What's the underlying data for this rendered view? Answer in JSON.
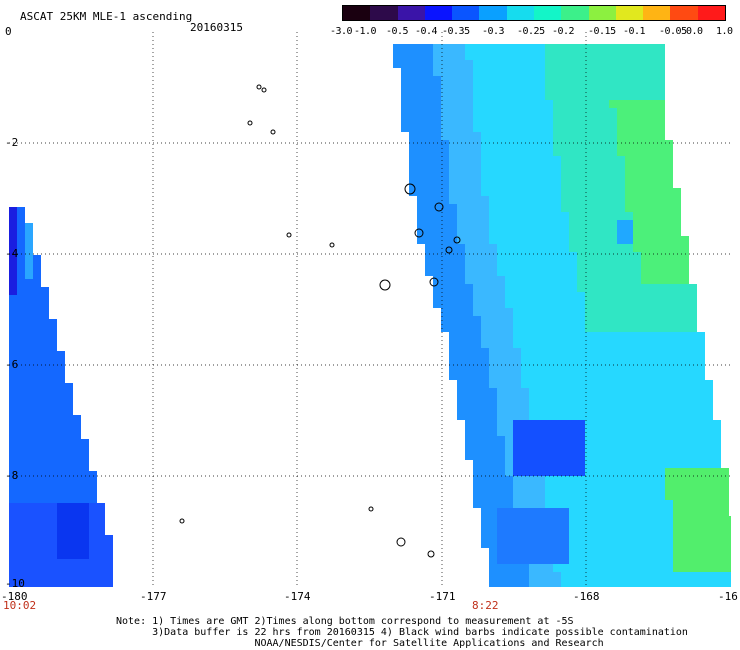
{
  "header": {
    "title": "ASCAT 25KM MLE-1 ascending",
    "date": "20160315"
  },
  "colorbar": {
    "labels": [
      "-3.0",
      "-1.0",
      "-0.5",
      "-0.4",
      "-0.35",
      "-0.3",
      "-0.25",
      "-0.2",
      "-0.15",
      "-0.1",
      "-0.05",
      "0.0",
      "1.0"
    ],
    "colors": [
      "#1a0010",
      "#2d0a4a",
      "#3a14a8",
      "#0a14ff",
      "#0a55ff",
      "#0aa0ff",
      "#16dcee",
      "#13f5c8",
      "#3cf08a",
      "#8cf040",
      "#e1e81e",
      "#ffb414",
      "#ff4a12",
      "#ff1a1a"
    ]
  },
  "axes": {
    "lat_labels": [
      "0",
      "-2",
      "-4",
      "-6",
      "-8",
      "-10"
    ],
    "lon_labels": [
      "-180",
      "-177",
      "-174",
      "-171",
      "-168",
      "-16"
    ],
    "time_labels": [
      "10:02",
      "8:22"
    ]
  },
  "notes": [
    "Note: 1) Times are GMT 2)Times along bottom correspond to measurement at -5S",
    "      3)Data buffer is 22 hrs from 20160315 4) Black wind barbs indicate possible contamination",
    "                       NOAA/NESDIS/Center for Satellite Applications and Research"
  ]
}
